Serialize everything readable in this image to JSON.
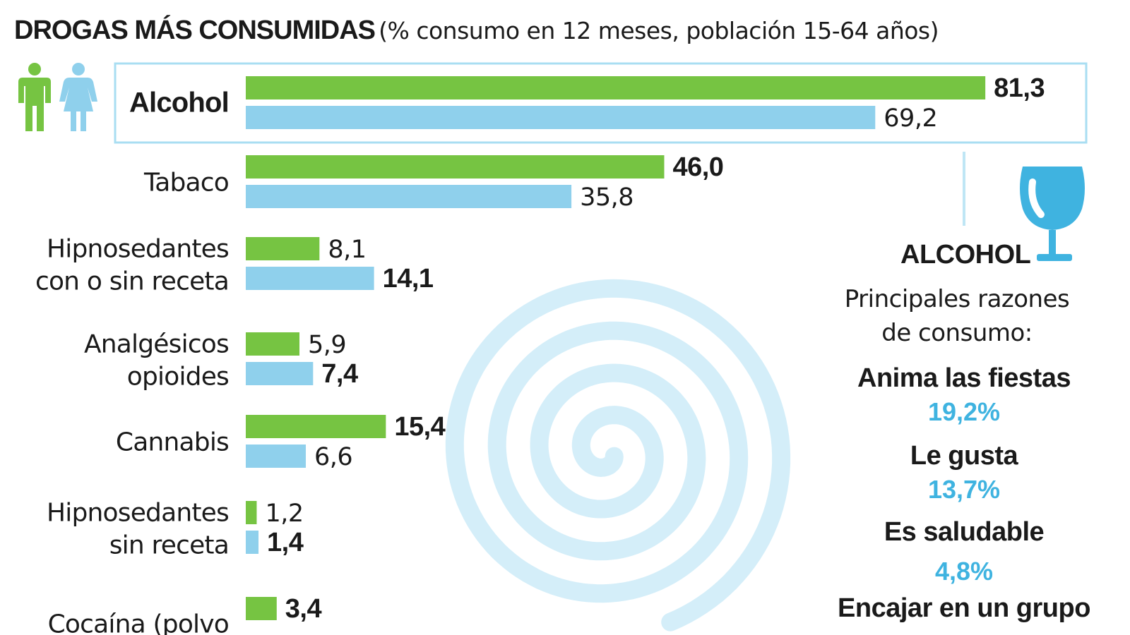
{
  "title": {
    "main": "DROGAS MÁS CONSUMIDAS",
    "sub": "(% consumo en 12 meses, población 15-64 años)"
  },
  "colors": {
    "men": "#76c442",
    "women": "#8fd0ec",
    "accent": "#3fb3e0",
    "highlight_border": "#a9def2",
    "spiral": "#d4eef9"
  },
  "icons": [
    "man-icon",
    "woman-icon",
    "wine-glass-icon"
  ],
  "chart_data": {
    "type": "bar",
    "orientation": "horizontal",
    "xlim": [
      0,
      100
    ],
    "grid": false,
    "categories": [
      "Alcohol",
      "Tabaco",
      "Hipnosedantes con o sin receta",
      "Analgésicos opioides",
      "Cannabis",
      "Hipnosedantes sin receta",
      "Cocaína (polvo"
    ],
    "category_lines": [
      [
        "Alcohol"
      ],
      [
        "Tabaco"
      ],
      [
        "Hipnosedantes",
        "con o sin receta"
      ],
      [
        "Analgésicos",
        "opioides"
      ],
      [
        "Cannabis"
      ],
      [
        "Hipnosedantes",
        "sin receta"
      ],
      [
        "Cocaína (polvo"
      ]
    ],
    "series": [
      {
        "values": [
          81.3,
          46.0,
          8.1,
          5.9,
          15.4,
          1.2,
          3.4
        ],
        "labels": [
          "81,3",
          "46,0",
          "8,1",
          "5,9",
          "15,4",
          "1,2",
          "3,4"
        ],
        "bold": [
          true,
          true,
          false,
          false,
          true,
          false,
          true
        ]
      },
      {
        "values": [
          69.2,
          35.8,
          14.1,
          7.4,
          6.6,
          1.4,
          null
        ],
        "labels": [
          "69,2",
          "35,8",
          "14,1",
          "7,4",
          "6,6",
          "1,4",
          ""
        ],
        "bold": [
          false,
          false,
          true,
          true,
          false,
          true,
          false
        ]
      }
    ],
    "highlighted_category": "Alcohol"
  },
  "panel": {
    "heading": "ALCOHOL",
    "intro_line1": "Principales razones",
    "intro_line2": "de consumo:",
    "reasons": [
      {
        "label": "Anima las fiestas",
        "value": "19,2%"
      },
      {
        "label": "Le gusta",
        "value": "13,7%"
      },
      {
        "label": "Es saludable",
        "value": "4,8%"
      },
      {
        "label": "Encajar en un grupo",
        "value": ""
      }
    ]
  }
}
